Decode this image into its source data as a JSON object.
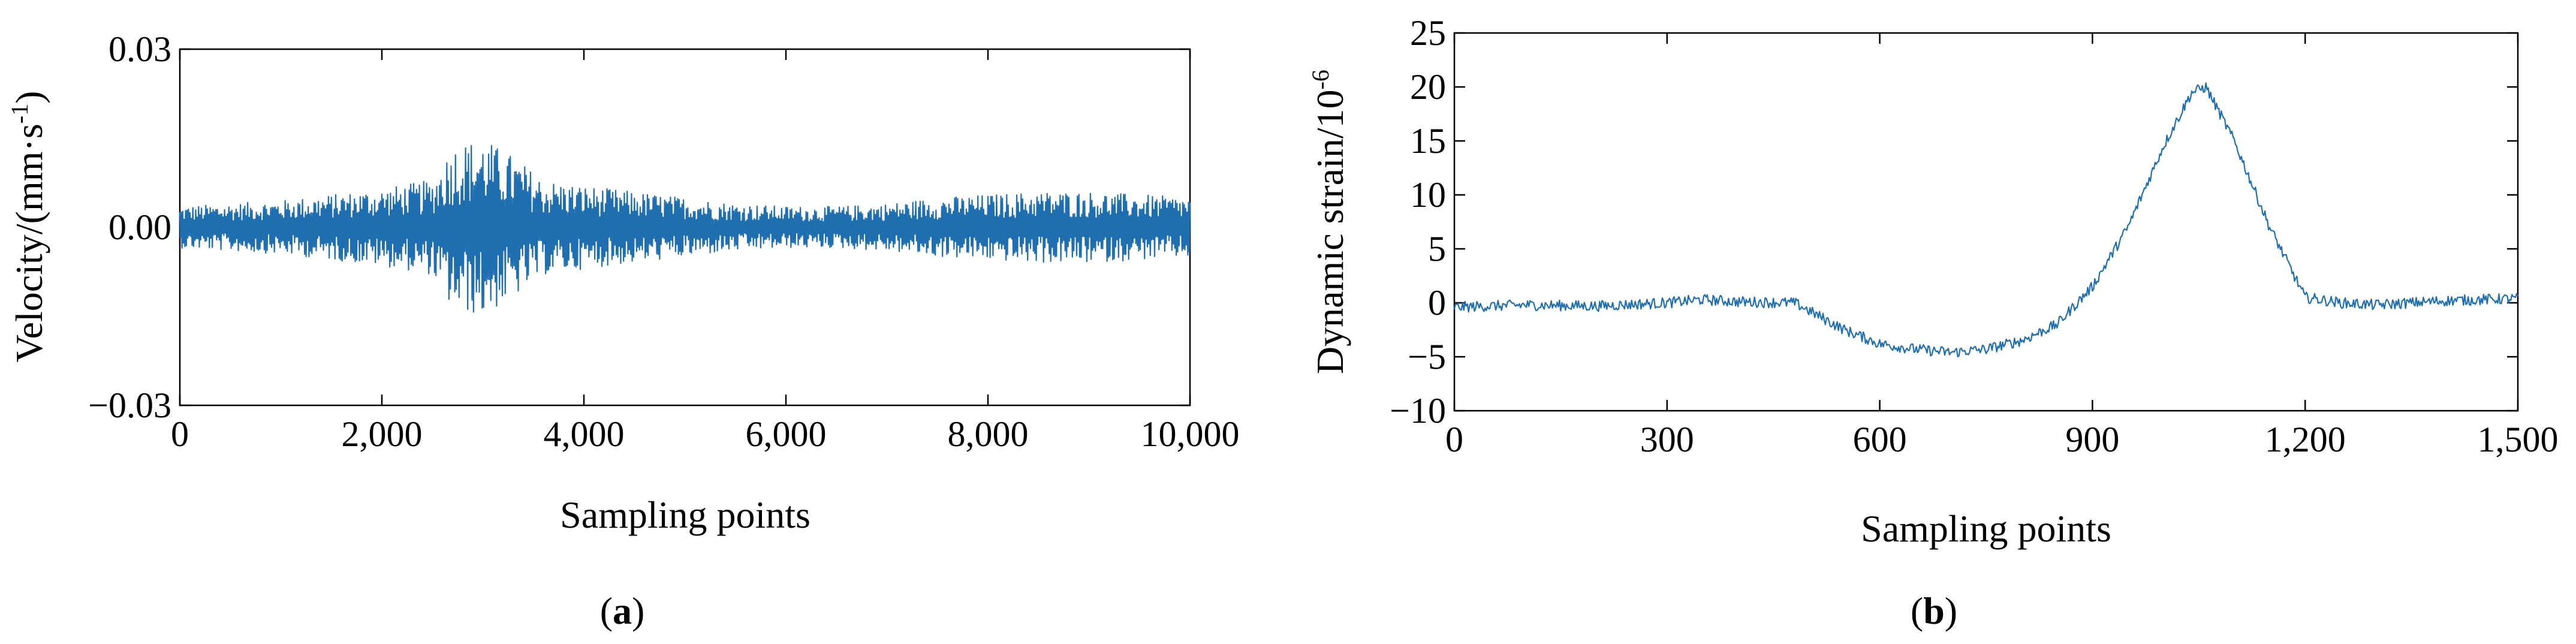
{
  "panels": [
    {
      "caption_prefix": "(",
      "caption_letter": "a",
      "caption_suffix": ")"
    },
    {
      "caption_prefix": "(",
      "caption_letter": "b",
      "caption_suffix": ")"
    }
  ],
  "chart_data": [
    {
      "type": "line",
      "title": "",
      "xlabel": "Sampling points",
      "ylabel": "Velocity/(mm·s",
      "ylabel_sup": "-1",
      "ylabel_end": ")",
      "xlim": [
        0,
        10000
      ],
      "ylim": [
        -0.03,
        0.03
      ],
      "x_ticks": [
        0,
        2000,
        4000,
        6000,
        8000,
        10000
      ],
      "x_tick_labels": [
        "0",
        "2,000",
        "4,000",
        "6,000",
        "8,000",
        "10,000"
      ],
      "y_ticks": [
        -0.03,
        0.0,
        0.03
      ],
      "y_tick_labels": [
        "−0.03",
        "0.00",
        "0.03"
      ],
      "grid": false,
      "color": "#1f6fb0",
      "series": [
        {
          "x": [
            0,
            500,
            1000,
            1500,
            2000,
            2500,
            2700,
            3000,
            3300,
            3600,
            4000,
            4500,
            5000,
            5500,
            6000,
            6500,
            7000,
            7500,
            8000,
            8500,
            9000,
            9500,
            10000
          ],
          "amplitude": [
            0.0035,
            0.004,
            0.0045,
            0.0055,
            0.0065,
            0.008,
            0.014,
            0.015,
            0.012,
            0.008,
            0.007,
            0.006,
            0.005,
            0.004,
            0.0035,
            0.0035,
            0.004,
            0.005,
            0.0055,
            0.006,
            0.006,
            0.0055,
            0.005
          ],
          "center": 0.0
        }
      ]
    },
    {
      "type": "line",
      "title": "",
      "xlabel": "Sampling points",
      "ylabel": "Dynamic strain/10",
      "ylabel_sup": "-6",
      "ylabel_end": "",
      "xlim": [
        0,
        1500
      ],
      "ylim": [
        -10,
        25
      ],
      "x_ticks": [
        0,
        300,
        600,
        900,
        1200,
        1500
      ],
      "x_tick_labels": [
        "0",
        "300",
        "600",
        "900",
        "1,200",
        "1,500"
      ],
      "y_ticks": [
        -10,
        -5,
        0,
        5,
        10,
        15,
        20,
        25
      ],
      "y_tick_labels": [
        "−10",
        "−5",
        "0",
        "5",
        "10",
        "15",
        "20",
        "25"
      ],
      "grid": false,
      "color": "#1f6fb0",
      "series": [
        {
          "x": [
            0,
            100,
            200,
            300,
            350,
            400,
            480,
            550,
            600,
            650,
            700,
            750,
            800,
            850,
            900,
            950,
            1000,
            1040,
            1060,
            1100,
            1150,
            1200,
            1250,
            1300,
            1400,
            1500
          ],
          "y": [
            -0.4,
            -0.2,
            -0.3,
            0.0,
            0.3,
            0.1,
            0.0,
            -2.5,
            -3.8,
            -4.3,
            -4.6,
            -4.3,
            -3.5,
            -2.0,
            1.5,
            7.0,
            14.5,
            19.5,
            20.0,
            15.0,
            7.0,
            0.5,
            0.0,
            -0.2,
            0.2,
            0.4
          ],
          "noise": 0.5
        }
      ]
    }
  ]
}
